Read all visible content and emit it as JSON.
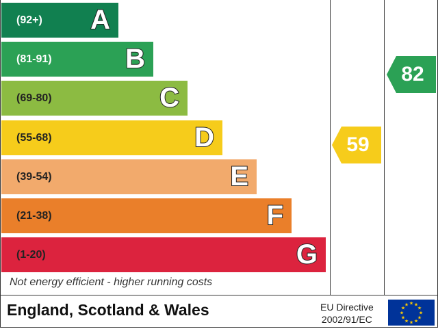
{
  "bands": [
    {
      "range": "(92+)",
      "letter": "A",
      "color": "#118050"
    },
    {
      "range": "(81-91)",
      "letter": "B",
      "color": "#2ba155"
    },
    {
      "range": "(69-80)",
      "letter": "C",
      "color": "#8cbb42"
    },
    {
      "range": "(55-68)",
      "letter": "D",
      "color": "#f6cc1b"
    },
    {
      "range": "(39-54)",
      "letter": "E",
      "color": "#f2aa6c"
    },
    {
      "range": "(21-38)",
      "letter": "F",
      "color": "#ea7f2a"
    },
    {
      "range": "(1-20)",
      "letter": "G",
      "color": "#dc233e"
    }
  ],
  "note": "Not energy efficient - higher running costs",
  "current": {
    "value": "59",
    "color": "#f6cc1b"
  },
  "potential": {
    "value": "82",
    "color": "#2ba155"
  },
  "footer": {
    "region": "England, Scotland & Wales",
    "directive_line1": "EU Directive",
    "directive_line2": "2002/91/EC"
  }
}
